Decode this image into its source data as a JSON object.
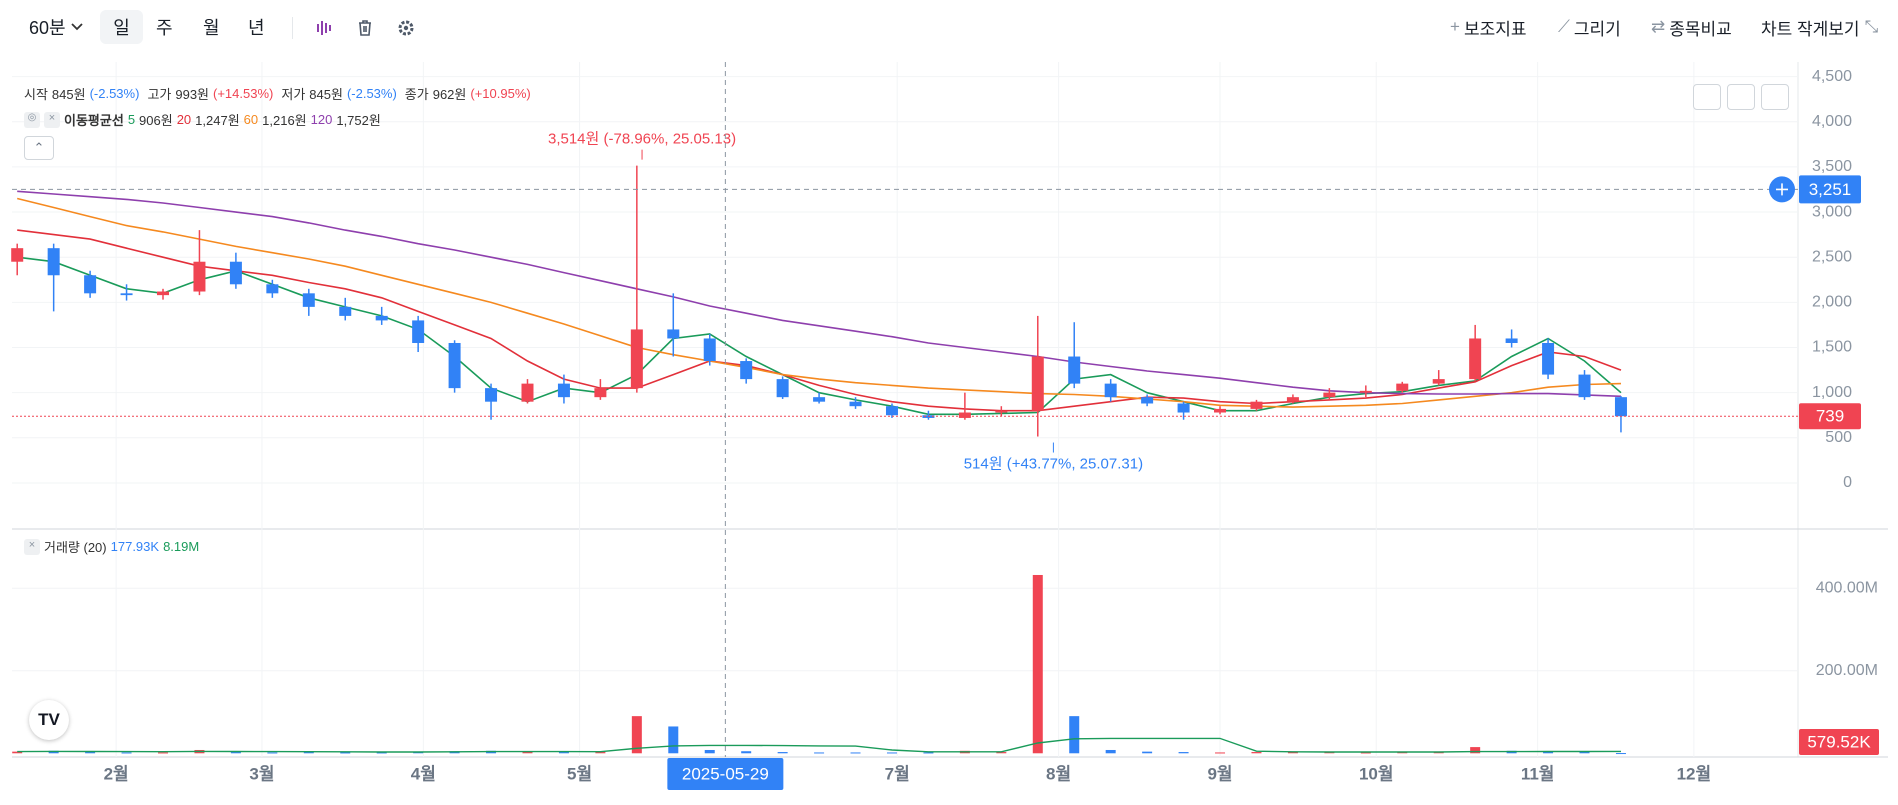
{
  "toolbar": {
    "interval": "60분",
    "periods": [
      "일",
      "주",
      "월",
      "년"
    ],
    "actions": [
      "보조지표",
      "그리기",
      "종목비교",
      "차트 작게보기"
    ]
  },
  "chart_data": [
    {
      "type": "candlestick",
      "info": [
        {
          "label": "시작",
          "value": "845원",
          "change": "(-2.53%)"
        },
        {
          "label": "고가",
          "value": "993원",
          "change": "(+14.53%)"
        },
        {
          "label": "저가",
          "value": "845원",
          "change": "(-2.53%)"
        },
        {
          "label": "종가",
          "value": "962원",
          "change": "(+10.95%)"
        }
      ],
      "ma_title": "이동평균선",
      "x": [
        "2025-01-13",
        "2025-01-20",
        "2025-01-27",
        "2025-02-03",
        "2025-02-10",
        "2025-02-17",
        "2025-02-24",
        "2025-03-03",
        "2025-03-10",
        "2025-03-17",
        "2025-03-24",
        "2025-03-31",
        "2025-04-07",
        "2025-04-14",
        "2025-04-21",
        "2025-04-28",
        "2025-05-05",
        "2025-05-12",
        "2025-05-19",
        "2025-05-26",
        "2025-06-02",
        "2025-06-09",
        "2025-06-16",
        "2025-06-23",
        "2025-06-30",
        "2025-07-07",
        "2025-07-14",
        "2025-07-21",
        "2025-07-28",
        "2025-08-04",
        "2025-08-11",
        "2025-08-18",
        "2025-08-25",
        "2025-09-01",
        "2025-09-08",
        "2025-09-15",
        "2025-09-22",
        "2025-09-29",
        "2025-10-06",
        "2025-10-13",
        "2025-10-20",
        "2025-10-27",
        "2025-11-03",
        "2025-11-10",
        "2025-11-17"
      ],
      "open": [
        2450,
        2600,
        2300,
        2100,
        2080,
        2120,
        2450,
        2200,
        2100,
        1950,
        1850,
        1800,
        1550,
        1050,
        900,
        1100,
        950,
        1050,
        1700,
        1600,
        1350,
        1150,
        950,
        900,
        850,
        750,
        720,
        780,
        800,
        1400,
        1100,
        950,
        880,
        780,
        820,
        900,
        950,
        1000,
        1020,
        1100,
        1150,
        1600,
        1550,
        1200,
        950
      ],
      "high": [
        2650,
        2650,
        2350,
        2200,
        2150,
        2800,
        2550,
        2250,
        2150,
        2050,
        1950,
        1850,
        1580,
        1100,
        1150,
        1200,
        1150,
        3514,
        2100,
        1650,
        1380,
        1180,
        1000,
        950,
        880,
        800,
        1000,
        850,
        1850,
        1780,
        1150,
        980,
        900,
        850,
        920,
        980,
        1050,
        1080,
        1120,
        1250,
        1750,
        1700,
        1600,
        1250,
        962
      ],
      "low": [
        2300,
        1900,
        2050,
        2020,
        2030,
        2080,
        2150,
        2050,
        1850,
        1800,
        1750,
        1450,
        1000,
        700,
        880,
        880,
        920,
        1000,
        1400,
        1300,
        1100,
        930,
        880,
        820,
        720,
        700,
        700,
        740,
        514,
        1050,
        900,
        850,
        700,
        760,
        800,
        880,
        920,
        950,
        1000,
        1080,
        1130,
        1500,
        1150,
        920,
        560
      ],
      "close": [
        2600,
        2300,
        2100,
        2080,
        2120,
        2450,
        2200,
        2100,
        1950,
        1850,
        1800,
        1550,
        1050,
        900,
        1100,
        950,
        1050,
        1700,
        1600,
        1350,
        1150,
        950,
        900,
        850,
        750,
        720,
        780,
        800,
        1400,
        1100,
        950,
        880,
        780,
        820,
        900,
        950,
        1000,
        1020,
        1100,
        1150,
        1600,
        1550,
        1200,
        950,
        739
      ],
      "up_color": "#f04452",
      "down_color": "#3182f6",
      "series": [
        {
          "name": "5",
          "legend_value": "906원",
          "color": "#1a9b5a",
          "values": [
            2500,
            2450,
            2300,
            2150,
            2100,
            2250,
            2350,
            2200,
            2050,
            1950,
            1850,
            1700,
            1400,
            1050,
            900,
            1050,
            1000,
            1200,
            1600,
            1650,
            1400,
            1200,
            1000,
            920,
            850,
            760,
            760,
            770,
            780,
            1150,
            1200,
            1000,
            900,
            800,
            800,
            880,
            950,
            990,
            1010,
            1080,
            1130,
            1400,
            1600,
            1350,
            1000
          ]
        },
        {
          "name": "20",
          "legend_value": "1,247원",
          "color": "#e2303a",
          "values": [
            2800,
            2750,
            2700,
            2600,
            2500,
            2400,
            2350,
            2300,
            2220,
            2150,
            2050,
            1900,
            1750,
            1600,
            1350,
            1150,
            1050,
            1050,
            1200,
            1350,
            1300,
            1200,
            1080,
            980,
            900,
            850,
            820,
            800,
            800,
            850,
            900,
            950,
            940,
            900,
            880,
            900,
            920,
            940,
            980,
            1050,
            1120,
            1300,
            1450,
            1400,
            1250
          ]
        },
        {
          "name": "60",
          "legend_value": "1,216원",
          "color": "#f5891f",
          "values": [
            3150,
            3050,
            2950,
            2850,
            2780,
            2700,
            2620,
            2550,
            2480,
            2400,
            2300,
            2200,
            2100,
            2000,
            1880,
            1760,
            1630,
            1500,
            1420,
            1350,
            1280,
            1200,
            1150,
            1110,
            1080,
            1050,
            1030,
            1010,
            990,
            980,
            960,
            930,
            900,
            860,
            850,
            840,
            850,
            860,
            880,
            920,
            960,
            1000,
            1060,
            1090,
            1100
          ]
        },
        {
          "name": "120",
          "legend_value": "1,752원",
          "color": "#8e3fad",
          "values": [
            3230,
            3200,
            3170,
            3140,
            3100,
            3050,
            3000,
            2950,
            2880,
            2800,
            2730,
            2650,
            2580,
            2500,
            2420,
            2330,
            2240,
            2150,
            2060,
            1960,
            1880,
            1800,
            1740,
            1680,
            1620,
            1550,
            1500,
            1450,
            1400,
            1340,
            1290,
            1240,
            1200,
            1160,
            1110,
            1060,
            1020,
            1000,
            990,
            985,
            985,
            990,
            990,
            975,
            960
          ]
        }
      ],
      "annotations": [
        {
          "text": "3,514원 (-78.96%, 25.05.13)",
          "x": "2025-05-13",
          "y": 3514,
          "position": "above",
          "color": "#f04452"
        },
        {
          "text": "514원 (+43.77%, 25.07.31)",
          "x": "2025-07-31",
          "y": 514,
          "position": "below",
          "color": "#3182f6"
        }
      ],
      "crosshair": {
        "x": "2025-05-29",
        "y": {
          "value": 3251,
          "label": "3,251"
        }
      },
      "last_price": 739,
      "xlim": [
        "2025-01-12",
        "2025-12-21"
      ],
      "xticks": [
        {
          "value": "2025-02-01",
          "label": "2월"
        },
        {
          "value": "2025-03-01",
          "label": "3월"
        },
        {
          "value": "2025-04-01",
          "label": "4월"
        },
        {
          "value": "2025-05-01",
          "label": "5월"
        },
        {
          "value": "2025-07-01",
          "label": "7월"
        },
        {
          "value": "2025-08-01",
          "label": "8월"
        },
        {
          "value": "2025-09-01",
          "label": "9월"
        },
        {
          "value": "2025-10-01",
          "label": "10월"
        },
        {
          "value": "2025-11-01",
          "label": "11월"
        },
        {
          "value": "2025-12-01",
          "label": "12월"
        }
      ],
      "ylim": [
        -510,
        4540
      ],
      "yticks": [
        0,
        500,
        {
          "value": 1000,
          "label": "1,000"
        },
        {
          "value": 1500,
          "label": "1,500"
        },
        {
          "value": 2000,
          "label": "2,000"
        },
        {
          "value": 2500,
          "label": "2,500"
        },
        {
          "value": 3000,
          "label": "3,000"
        },
        {
          "value": 3500,
          "label": "3,500"
        },
        {
          "value": 4000,
          "label": "4,000"
        },
        {
          "value": 4500,
          "label": "4,500"
        }
      ],
      "grid": true
    },
    {
      "type": "bar",
      "title": "거래량 (20)",
      "volume_label": "177.93K",
      "values": [
        4000000,
        6000000,
        3000000,
        2000000,
        2000000,
        8000000,
        3000000,
        2000000,
        3000000,
        2000000,
        2000000,
        3000000,
        5000000,
        6000000,
        4000000,
        3000000,
        3000000,
        90000000,
        65000000,
        8000000,
        5000000,
        3000000,
        2000000,
        2000000,
        2000000,
        2000000,
        6000000,
        3000000,
        432000000,
        90000000,
        8000000,
        4000000,
        3000000,
        2000000,
        3000000,
        3000000,
        3000000,
        2000000,
        3000000,
        4000000,
        15000000,
        6000000,
        5000000,
        4000000,
        579520
      ],
      "ma": {
        "label": "8.19M",
        "color": "#1a9b5a",
        "values": [
          4000000,
          4500000,
          4300000,
          4000000,
          3800000,
          4500000,
          4300000,
          4000000,
          3800000,
          3500000,
          3200000,
          3200000,
          3500000,
          4000000,
          4200000,
          4000000,
          3800000,
          12000000,
          18000000,
          19000000,
          19000000,
          18500000,
          18000000,
          17500000,
          8000000,
          3500000,
          3500000,
          3500000,
          25000000,
          35000000,
          36000000,
          36000000,
          36000000,
          36000000,
          5000000,
          3500000,
          3200000,
          3000000,
          3000000,
          3200000,
          4000000,
          4200000,
          4300000,
          4400000,
          4500000
        ]
      },
      "last_volume": {
        "value": 579520,
        "label": "579.52K"
      },
      "ylim": [
        -9000000,
        541000000
      ],
      "yticks": [
        {
          "value": 200000000,
          "label": "200.00M"
        },
        {
          "value": 400000000,
          "label": "400.00M"
        }
      ],
      "grid": true
    }
  ]
}
